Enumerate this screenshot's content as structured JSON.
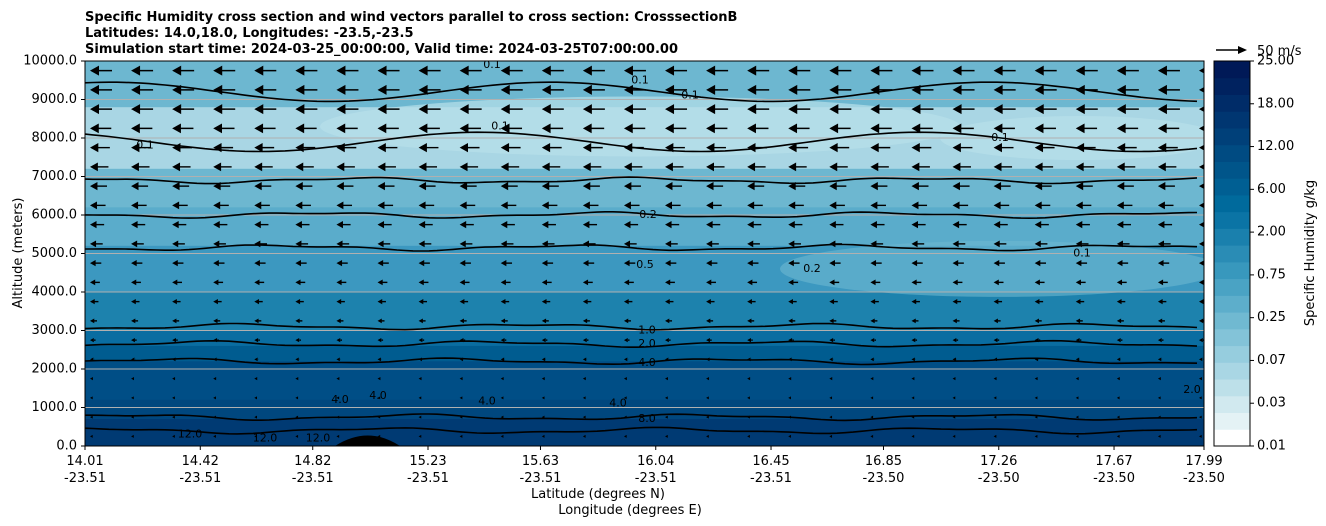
{
  "chart_data": {
    "type": "heatmap",
    "title_lines": [
      "Specific Humidity cross section and wind vectors parallel to cross section: CrosssectionB",
      "Latitudes: 14.0,18.0, Longitudes: -23.5,-23.5",
      "Simulation start time: 2024-03-25_00:00:00, Valid time: 2024-03-25T07:00:00.00"
    ],
    "ylabel": "Altitude (meters)",
    "xlabel_lat": "Latitude (degrees N)",
    "xlabel_lon": "Longitude (degrees E)",
    "ylim": [
      0,
      10000
    ],
    "y_ticks": [
      "0.0",
      "1000.0",
      "2000.0",
      "3000.0",
      "4000.0",
      "5000.0",
      "6000.0",
      "7000.0",
      "8000.0",
      "9000.0",
      "10000.0"
    ],
    "x_ticks_lat": [
      "14.01",
      "14.42",
      "14.82",
      "15.23",
      "15.63",
      "16.04",
      "16.45",
      "16.85",
      "17.26",
      "17.67",
      "17.99"
    ],
    "x_ticks_lon": [
      "-23.51",
      "-23.51",
      "-23.51",
      "-23.51",
      "-23.51",
      "-23.51",
      "-23.51",
      "-23.50",
      "-23.50",
      "-23.50",
      "-23.50"
    ],
    "colorbar": {
      "label": "Specific Humidity g/kg",
      "tick_labels": [
        "0.01",
        "0.03",
        "0.07",
        "0.25",
        "0.75",
        "2.00",
        "6.00",
        "12.00",
        "18.00",
        "25.00"
      ],
      "colors": [
        "#ffffff",
        "#e4f2f5",
        "#d1e9ef",
        "#bde0e9",
        "#a9d6e4",
        "#96cdde",
        "#83c3d8",
        "#70b9d1",
        "#5daecb",
        "#4aa3c4",
        "#3898bd",
        "#2a8cb5",
        "#1a80ad",
        "#0b74a5",
        "#006a9c",
        "#005f93",
        "#00558a",
        "#004b82",
        "#004079",
        "#003671",
        "#002c68",
        "#00225f",
        "#001957"
      ],
      "wind_key": "50 m/s"
    },
    "contour_levels": [
      {
        "level": "0.1",
        "altitude": 6900
      },
      {
        "level": "0.2",
        "altitude": 6000
      },
      {
        "level": "0.5",
        "altitude": 5150
      },
      {
        "level": "1.0",
        "altitude": 3100
      },
      {
        "level": "2.0",
        "altitude": 2650
      },
      {
        "level": "4.0",
        "altitude": 2200
      },
      {
        "level": "8.0",
        "altitude": 750
      },
      {
        "level": "12.0",
        "altitude": 400
      }
    ],
    "contour_labels": [
      "0.1",
      "0.1",
      "0.1",
      "0.1",
      "0.1",
      "0.1",
      "0.2",
      "0.2",
      "0.5",
      "0.1",
      "1.0",
      "2.0",
      "4.0",
      "4.0",
      "4.0",
      "4.0",
      "4.0",
      "8.0",
      "12.0",
      "12.0",
      "12.0",
      "2.0"
    ],
    "wind": {
      "direction": "westward (negative along section)",
      "speed_aloft_ms": 12,
      "speed_low_ms": 0
    }
  }
}
